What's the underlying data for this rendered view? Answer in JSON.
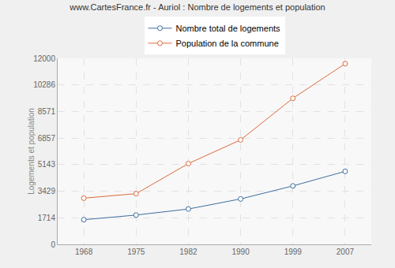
{
  "chart_data": {
    "type": "line",
    "title": "www.CartesFrance.fr - Auriol : Nombre de logements et population",
    "y_label": "Logements et population",
    "categories": [
      "1968",
      "1975",
      "1982",
      "1990",
      "1999",
      "2007"
    ],
    "series": [
      {
        "name": "Nombre total de logements",
        "color": "#3e6e9e",
        "values": [
          1590,
          1890,
          2280,
          2930,
          3770,
          4710
        ],
        "marker": "circle"
      },
      {
        "name": "Population de la commune",
        "color": "#dd6a3c",
        "values": [
          2980,
          3270,
          5210,
          6740,
          9420,
          11650
        ],
        "marker": "circle"
      }
    ],
    "ylim": [
      0,
      12000
    ],
    "yticks": [
      0,
      1714,
      3429,
      5143,
      6857,
      8571,
      10286,
      12000
    ],
    "grid": true,
    "legend": "top"
  }
}
